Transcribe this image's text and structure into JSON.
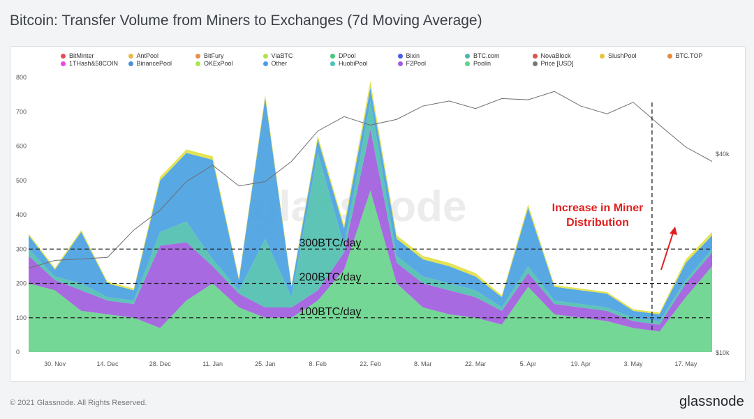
{
  "title": "Bitcoin: Transfer Volume from Miners to Exchanges (7d Moving Average)",
  "footer": "© 2021 Glassnode. All Rights Reserved.",
  "brand": "glassnode",
  "watermark": "glassnode",
  "chart_data": {
    "type": "area",
    "stacked": true,
    "legend": [
      {
        "name": "BitMinter",
        "color": "#e84a5f"
      },
      {
        "name": "AntPool",
        "color": "#e8b84a"
      },
      {
        "name": "BitFury",
        "color": "#e8904a"
      },
      {
        "name": "ViaBTC",
        "color": "#b4e04a"
      },
      {
        "name": "DPool",
        "color": "#4ac77a"
      },
      {
        "name": "Bixin",
        "color": "#4a5ee8"
      },
      {
        "name": "BTC.com",
        "color": "#4ab8a8"
      },
      {
        "name": "NovaBlock",
        "color": "#d9534f"
      },
      {
        "name": "SlushPool",
        "color": "#e8c43a"
      },
      {
        "name": "BTC.TOP",
        "color": "#e8893a"
      },
      {
        "name": "1THash&58COIN",
        "color": "#e84ae0"
      },
      {
        "name": "BinancePool",
        "color": "#4a90d9"
      },
      {
        "name": "OKExPool",
        "color": "#a8e84a"
      },
      {
        "name": "Other",
        "color": "#4a9ee8"
      },
      {
        "name": "HuobiPool",
        "color": "#4ac4b4"
      },
      {
        "name": "F2Pool",
        "color": "#a05ae0"
      },
      {
        "name": "Poolin",
        "color": "#5cd68a"
      },
      {
        "name": "Price [USD]",
        "color": "#777777"
      }
    ],
    "x_ticks": [
      "30. Nov",
      "14. Dec",
      "28. Dec",
      "11. Jan",
      "25. Jan",
      "8. Feb",
      "22. Feb",
      "8. Mar",
      "22. Mar",
      "5. Apr",
      "19. Apr",
      "3. May",
      "17. May"
    ],
    "y_ticks": [
      0,
      100,
      200,
      300,
      400,
      500,
      600,
      700,
      800
    ],
    "ylim": [
      0,
      800
    ],
    "y2_ticks": [
      "$10k",
      "$40k"
    ],
    "x_dates": [
      "2020-11-23",
      "2020-11-30",
      "2020-12-07",
      "2020-12-14",
      "2020-12-21",
      "2020-12-28",
      "2021-01-04",
      "2021-01-11",
      "2021-01-18",
      "2021-01-25",
      "2021-02-01",
      "2021-02-08",
      "2021-02-15",
      "2021-02-22",
      "2021-03-01",
      "2021-03-08",
      "2021-03-15",
      "2021-03-22",
      "2021-03-29",
      "2021-04-05",
      "2021-04-12",
      "2021-04-19",
      "2021-04-26",
      "2021-05-03",
      "2021-05-10",
      "2021-05-17",
      "2021-05-24"
    ],
    "series": [
      {
        "name": "Poolin",
        "color": "#6dd58f",
        "values": [
          200,
          180,
          120,
          110,
          100,
          70,
          150,
          200,
          130,
          100,
          100,
          150,
          240,
          470,
          200,
          130,
          110,
          100,
          80,
          190,
          110,
          100,
          90,
          70,
          60,
          160,
          250
        ]
      },
      {
        "name": "F2Pool",
        "color": "#a262df",
        "values": [
          80,
          30,
          60,
          40,
          40,
          240,
          170,
          50,
          40,
          30,
          30,
          30,
          50,
          180,
          60,
          70,
          70,
          60,
          40,
          40,
          30,
          30,
          30,
          20,
          20,
          40,
          40
        ]
      },
      {
        "name": "HuobiPool",
        "color": "#55c2b2",
        "values": [
          20,
          10,
          20,
          10,
          10,
          40,
          60,
          20,
          10,
          200,
          30,
          400,
          20,
          80,
          20,
          20,
          20,
          20,
          10,
          20,
          10,
          10,
          10,
          10,
          10,
          10,
          10
        ]
      },
      {
        "name": "Other",
        "color": "#4fa3e3",
        "values": [
          40,
          20,
          150,
          40,
          30,
          150,
          200,
          290,
          30,
          410,
          30,
          40,
          50,
          40,
          50,
          50,
          50,
          40,
          30,
          170,
          40,
          40,
          40,
          20,
          20,
          50,
          40
        ]
      },
      {
        "name": "OKExPool",
        "color": "#e2e24a",
        "values": [
          5,
          5,
          5,
          5,
          5,
          10,
          10,
          10,
          5,
          10,
          5,
          10,
          10,
          20,
          10,
          10,
          10,
          10,
          5,
          10,
          5,
          5,
          5,
          5,
          5,
          10,
          10
        ]
      }
    ],
    "price": [
      18000,
      19000,
      19200,
      19400,
      23500,
      27000,
      33000,
      37000,
      32000,
      33000,
      38000,
      47000,
      52000,
      49000,
      51000,
      56000,
      58000,
      55000,
      59000,
      58500,
      62000,
      56000,
      53000,
      57500,
      49000,
      42000,
      38000
    ],
    "annotations": {
      "hlines": [
        {
          "label": "300BTC/day",
          "value": 300
        },
        {
          "label": "200BTC/day",
          "value": 200
        },
        {
          "label": "100BTC/day",
          "value": 100
        }
      ],
      "vline_date": "2021-05-08",
      "callout": [
        "Increase in Miner",
        "Distribution"
      ],
      "callout_color": "#e0201f"
    }
  }
}
